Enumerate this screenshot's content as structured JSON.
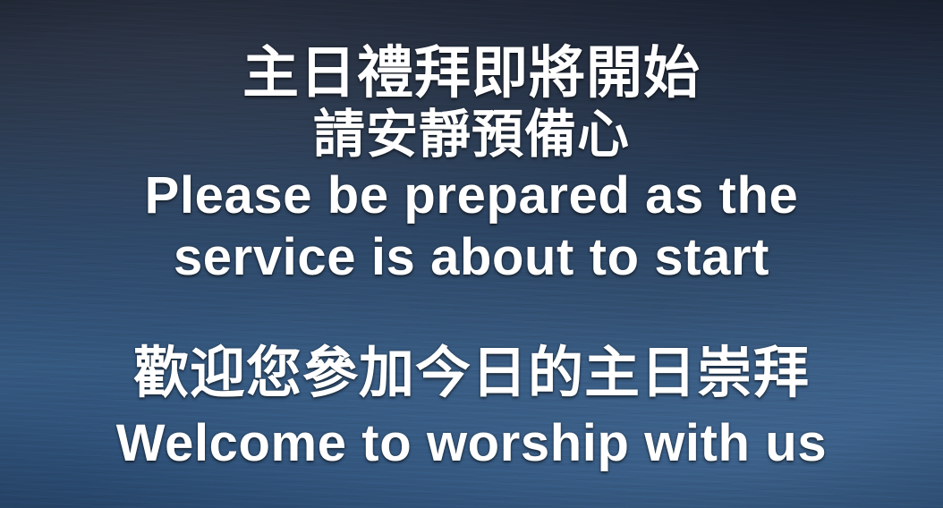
{
  "slide": {
    "lines": [
      "主日禮拜即將開始",
      "請安靜預備心",
      "Please be prepared as the",
      "service is about to start",
      "歡迎您參加今日的主日崇拜",
      "Welcome to worship with us"
    ]
  },
  "colors": {
    "text": "#ffffff",
    "background_top": "#1b2231",
    "background_mid": "#2d4767",
    "background_bottom": "#35587f"
  }
}
